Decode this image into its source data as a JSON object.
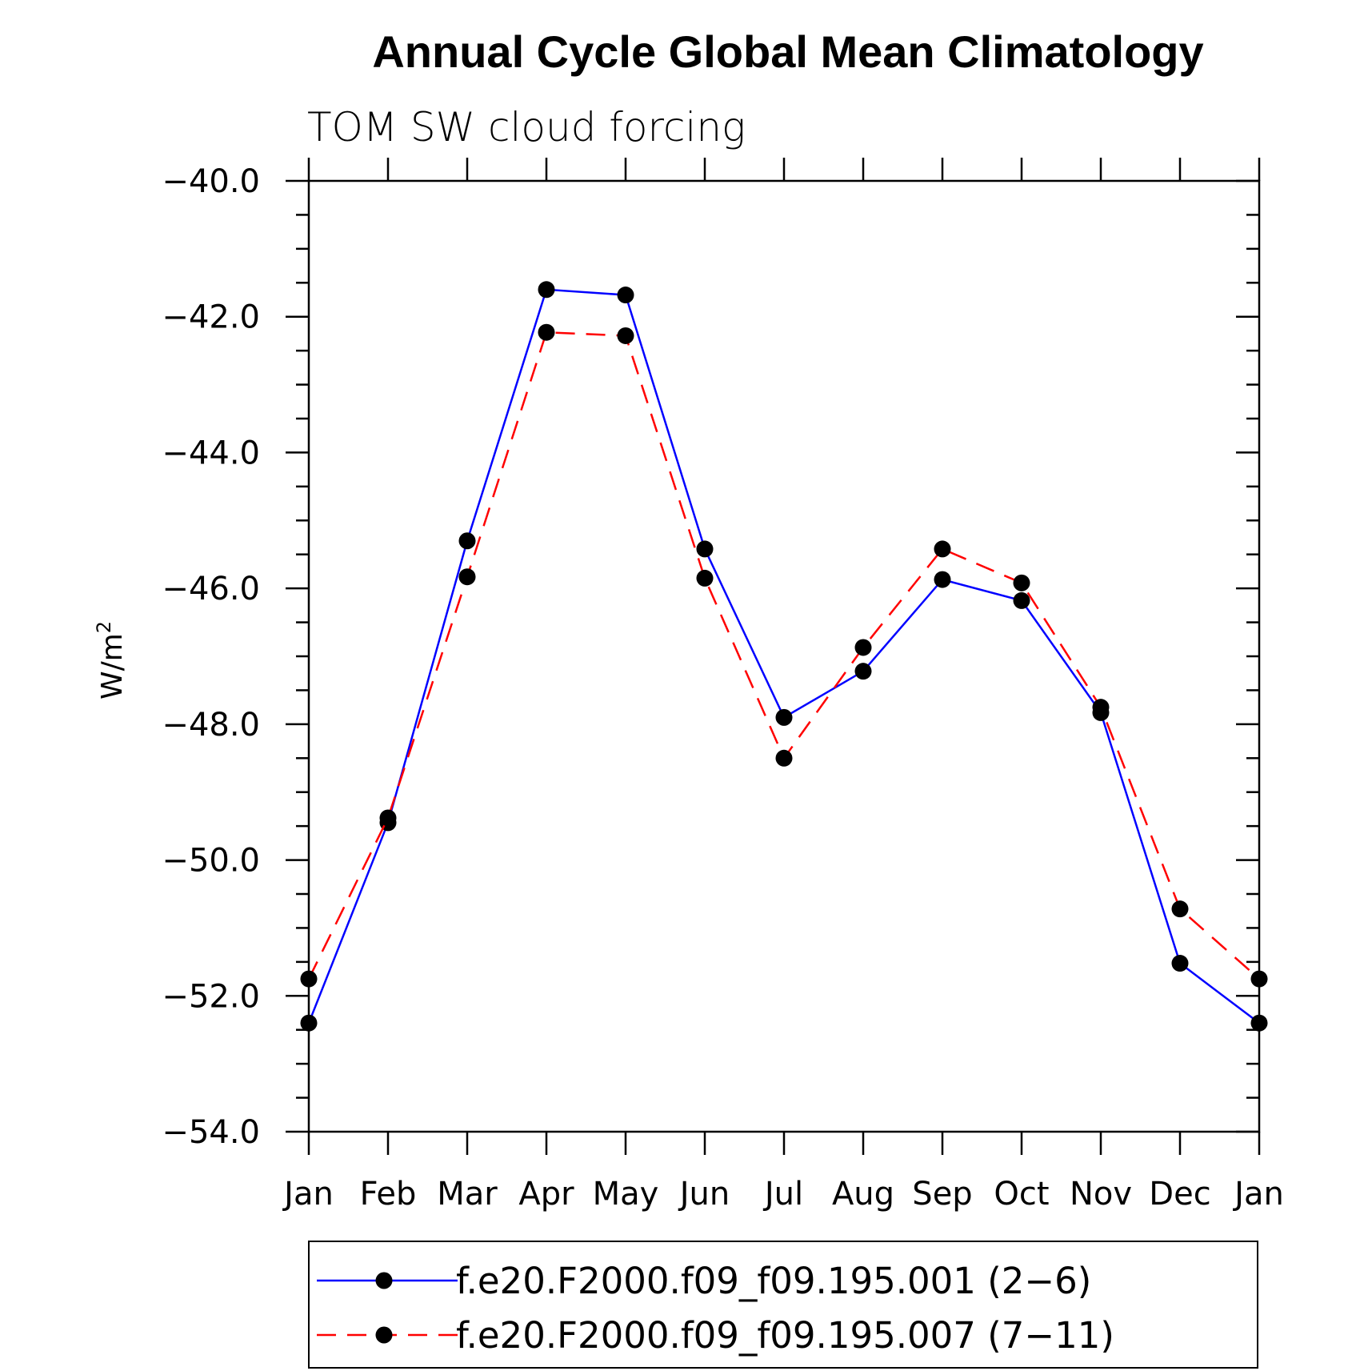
{
  "chart_data": {
    "type": "line",
    "title": "Annual Cycle Global Mean Climatology",
    "subtitle": "TOM SW cloud forcing",
    "ylabel": "W/m",
    "ylabel_sup": "2",
    "xlabel": "",
    "categories": [
      "Jan",
      "Feb",
      "Mar",
      "Apr",
      "May",
      "Jun",
      "Jul",
      "Aug",
      "Sep",
      "Oct",
      "Nov",
      "Dec",
      "Jan"
    ],
    "ylim": [
      -54.0,
      -40.0
    ],
    "yticks": [
      -40.0,
      -42.0,
      -44.0,
      -46.0,
      -48.0,
      -50.0,
      -52.0,
      -54.0
    ],
    "ytick_labels": [
      "−40.0",
      "−42.0",
      "−44.0",
      "−46.0",
      "−48.0",
      "−50.0",
      "−52.0",
      "−54.0"
    ],
    "grid": false,
    "legend_position": "bottom",
    "series": [
      {
        "name": "f.e20.F2000.f09_f09.195.001 (2−6)",
        "color": "#0000ff",
        "dash": "solid",
        "values": [
          -52.4,
          -49.45,
          -45.3,
          -41.6,
          -41.68,
          -45.42,
          -47.9,
          -47.22,
          -45.87,
          -46.18,
          -47.83,
          -51.52,
          -52.4
        ]
      },
      {
        "name": "f.e20.F2000.f09_f09.195.007 (7−11)",
        "color": "#ff0000",
        "dash": "dashed",
        "values": [
          -51.75,
          -49.38,
          -45.83,
          -42.23,
          -42.28,
          -45.85,
          -48.5,
          -46.87,
          -45.42,
          -45.92,
          -47.75,
          -50.72,
          -51.75
        ]
      }
    ]
  }
}
